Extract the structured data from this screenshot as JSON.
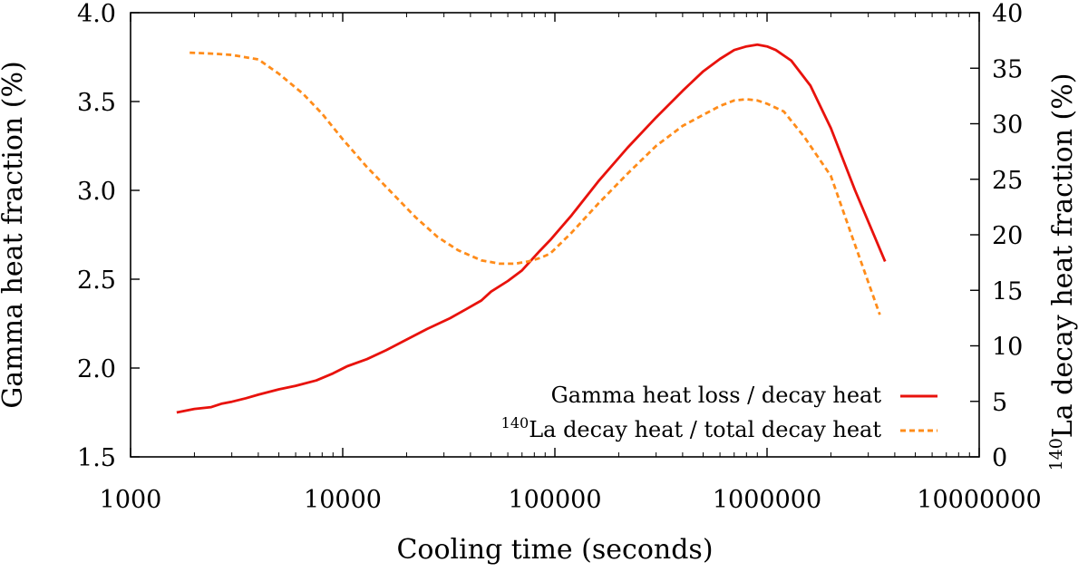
{
  "chart_data": {
    "type": "line",
    "x_scale": "log",
    "xlabel": "Cooling time (seconds)",
    "ylabel_left": "Gamma heat fraction (%)",
    "ylabel_right_sup": "140",
    "ylabel_right": "La decay heat fraction (%)",
    "xlim": [
      1000,
      10000000
    ],
    "ylim_left": [
      1.5,
      4.0
    ],
    "ylim_right": [
      0,
      40
    ],
    "x_ticks": [
      1000,
      10000,
      100000,
      1000000,
      10000000
    ],
    "x_tick_labels": [
      "1000",
      "10000",
      "100000",
      "1000000",
      "10000000"
    ],
    "y_left_ticks": [
      1.5,
      2.0,
      2.5,
      3.0,
      3.5,
      4.0
    ],
    "y_left_tick_labels": [
      "1.5",
      "2.0",
      "2.5",
      "3.0",
      "3.5",
      "4.0"
    ],
    "y_right_ticks": [
      0,
      5,
      10,
      15,
      20,
      25,
      30,
      35,
      40
    ],
    "y_right_tick_labels": [
      "0",
      "5",
      "10",
      "15",
      "20",
      "25",
      "30",
      "35",
      "40"
    ],
    "legend_position": "bottom-right",
    "series": [
      {
        "name": "Gamma heat loss / decay heat",
        "axis": "left",
        "color": "#e8120c",
        "style": "solid",
        "x": [
          1650,
          2000,
          2400,
          2700,
          3000,
          3500,
          4000,
          5000,
          6000,
          7500,
          9000,
          10500,
          13000,
          16000,
          20000,
          25000,
          32000,
          38000,
          45000,
          50000,
          60000,
          70000,
          85000,
          95000,
          120000,
          160000,
          220000,
          300000,
          400000,
          500000,
          600000,
          700000,
          800000,
          900000,
          1000000,
          1100000,
          1300000,
          1600000,
          2000000,
          2600000,
          3600000
        ],
        "y": [
          1.75,
          1.77,
          1.78,
          1.8,
          1.81,
          1.83,
          1.85,
          1.88,
          1.9,
          1.93,
          1.97,
          2.01,
          2.05,
          2.1,
          2.16,
          2.22,
          2.28,
          2.33,
          2.38,
          2.43,
          2.49,
          2.55,
          2.66,
          2.72,
          2.86,
          3.05,
          3.24,
          3.41,
          3.56,
          3.67,
          3.74,
          3.79,
          3.81,
          3.82,
          3.81,
          3.79,
          3.73,
          3.59,
          3.35,
          3.0,
          2.6
        ]
      },
      {
        "name_sup": "140",
        "name": "La decay heat / total decay heat",
        "axis": "right",
        "color": "#ff8c1a",
        "style": "dashed",
        "x": [
          1900,
          2500,
          3000,
          4000,
          5000,
          6500,
          8000,
          10000,
          13000,
          17000,
          22000,
          28000,
          35000,
          45000,
          55000,
          65000,
          75000,
          85000,
          95000,
          120000,
          160000,
          220000,
          300000,
          400000,
          500000,
          600000,
          700000,
          800000,
          900000,
          1000000,
          1200000,
          1500000,
          2000000,
          2500000,
          3400000
        ],
        "y": [
          36.4,
          36.3,
          36.2,
          35.8,
          34.5,
          32.7,
          30.9,
          28.6,
          26.1,
          23.8,
          21.6,
          19.8,
          18.6,
          17.7,
          17.4,
          17.4,
          17.6,
          17.9,
          18.3,
          20.2,
          22.8,
          25.5,
          28.0,
          29.8,
          30.8,
          31.6,
          32.1,
          32.2,
          32.1,
          31.8,
          31.1,
          28.8,
          25.3,
          20.0,
          12.8
        ]
      }
    ]
  }
}
